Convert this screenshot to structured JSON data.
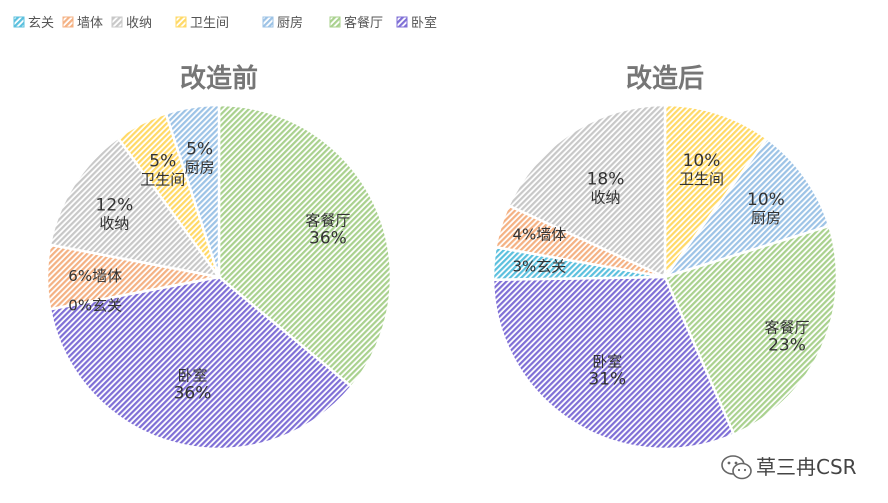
{
  "legend": {
    "items": [
      {
        "label": "玄关",
        "color": "#5BC0DE"
      },
      {
        "label": "墙体",
        "color": "#F4B183"
      },
      {
        "label": "收纳",
        "color": "#C8C8C8"
      },
      {
        "label": "卫生间",
        "color": "#FFD966"
      },
      {
        "label": "厨房",
        "color": "#9DC3E6"
      },
      {
        "label": "客餐厅",
        "color": "#A9D18E"
      },
      {
        "label": "卧室",
        "color": "#7F6FD6"
      }
    ]
  },
  "chart_data": [
    {
      "type": "pie",
      "title": "改造前",
      "start_category": "厨房",
      "categories": [
        "客餐厅",
        "卧室",
        "玄关",
        "墙体",
        "收纳",
        "卫生间",
        "厨房"
      ],
      "values": [
        36,
        36,
        0,
        6,
        12,
        5,
        5
      ],
      "value_labels": [
        "36%",
        "36%",
        "0%",
        "6%",
        "12%",
        "5%",
        "5%"
      ],
      "legend_position": "top-left",
      "grid": false
    },
    {
      "type": "pie",
      "title": "改造后",
      "start_category": "卫生间",
      "categories": [
        "卫生间",
        "厨房",
        "客餐厅",
        "卧室",
        "玄关",
        "墙体",
        "收纳"
      ],
      "values": [
        10,
        10,
        23,
        31,
        3,
        4,
        18
      ],
      "value_labels": [
        "10%",
        "10%",
        "23%",
        "31%",
        "3%",
        "4%",
        "18%"
      ],
      "legend_position": "top-left",
      "grid": false
    }
  ],
  "watermark": {
    "text": "草三冉CSR",
    "icon": "wechat-icon"
  }
}
